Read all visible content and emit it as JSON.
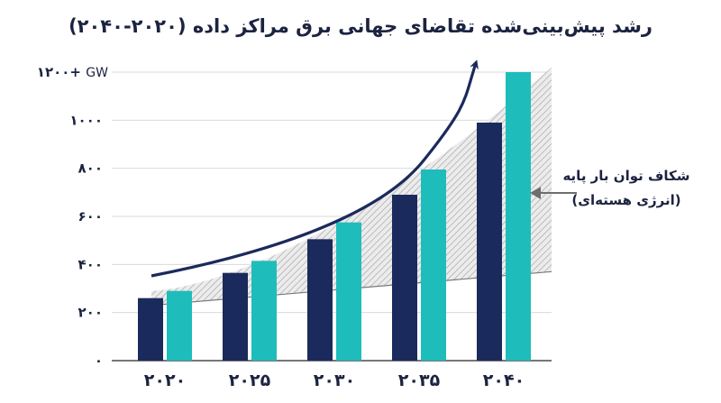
{
  "chart_data": {
    "type": "bar",
    "title": "رشد پیش‌بینی‌شده تقاضای جهانی برق مراکز داده (۲۰۲۰-۲۰۴۰)",
    "categories": [
      "۲۰۲۰",
      "۲۰۲۵",
      "۲۰۳۰",
      "۲۰۳۵",
      "۲۰۴۰"
    ],
    "series": [
      {
        "values": [
          260,
          365,
          505,
          690,
          990
        ],
        "color": "#1b2a5c"
      },
      {
        "values": [
          290,
          415,
          575,
          795,
          1200
        ],
        "color": "#1ebdbc"
      }
    ],
    "ylim": [
      0,
      1200
    ],
    "yticks": [
      0,
      200,
      400,
      600,
      800,
      1000,
      1200
    ],
    "ytick_labels": [
      "۰",
      "۲۰۰",
      "۴۰۰",
      "۶۰۰",
      "۸۰۰",
      "۱۰۰۰",
      "۱۲۰۰+"
    ],
    "y_unit": "GW",
    "baseload_line": [
      230,
      370
    ],
    "annotation": {
      "line1": "شکاف توان بار پایه",
      "line2": "(انرژی هسته‌ای)"
    },
    "colors": {
      "navy": "#1b2a5c",
      "teal": "#1ebdbc",
      "grid": "#d9d9d9",
      "gap_fill": "#bdbdbd",
      "arrow": "#6e6e6e"
    },
    "grid": true
  }
}
